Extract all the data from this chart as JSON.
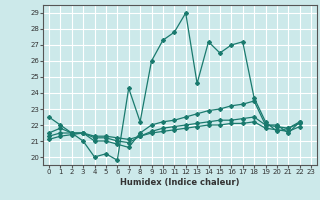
{
  "title": "",
  "xlabel": "Humidex (Indice chaleur)",
  "ylabel": "",
  "background_color": "#cce9ea",
  "grid_color": "#ffffff",
  "line_color": "#1a7a6e",
  "ylim": [
    19.5,
    29.5
  ],
  "xlim": [
    -0.5,
    23.5
  ],
  "yticks": [
    20,
    21,
    22,
    23,
    24,
    25,
    26,
    27,
    28,
    29
  ],
  "xticks": [
    0,
    1,
    2,
    3,
    4,
    5,
    6,
    7,
    8,
    9,
    10,
    11,
    12,
    13,
    14,
    15,
    16,
    17,
    18,
    19,
    20,
    21,
    22,
    23
  ],
  "series": [
    [
      22.5,
      22.0,
      21.5,
      21.0,
      20.0,
      20.2,
      19.8,
      24.3,
      22.2,
      26.0,
      27.3,
      27.8,
      29.0,
      24.6,
      27.2,
      26.5,
      27.0,
      27.2,
      23.7,
      22.2,
      21.6,
      21.8,
      22.2
    ],
    [
      21.5,
      21.8,
      21.5,
      21.5,
      21.0,
      21.0,
      20.8,
      20.6,
      21.5,
      22.0,
      22.2,
      22.3,
      22.5,
      22.7,
      22.9,
      23.0,
      23.2,
      23.3,
      23.5,
      22.0,
      22.0,
      21.5,
      22.2
    ],
    [
      21.3,
      21.5,
      21.5,
      21.5,
      21.2,
      21.2,
      21.0,
      20.9,
      21.3,
      21.6,
      21.8,
      21.9,
      22.0,
      22.1,
      22.2,
      22.3,
      22.3,
      22.4,
      22.5,
      22.0,
      21.9,
      21.8,
      22.1
    ],
    [
      21.1,
      21.3,
      21.4,
      21.5,
      21.3,
      21.3,
      21.2,
      21.1,
      21.3,
      21.5,
      21.6,
      21.7,
      21.8,
      21.9,
      22.0,
      22.0,
      22.1,
      22.1,
      22.2,
      21.8,
      21.7,
      21.6,
      21.9
    ]
  ],
  "x_values": [
    0,
    1,
    2,
    3,
    4,
    5,
    6,
    7,
    8,
    9,
    10,
    11,
    12,
    13,
    14,
    15,
    16,
    17,
    18,
    19,
    20,
    21,
    22
  ]
}
